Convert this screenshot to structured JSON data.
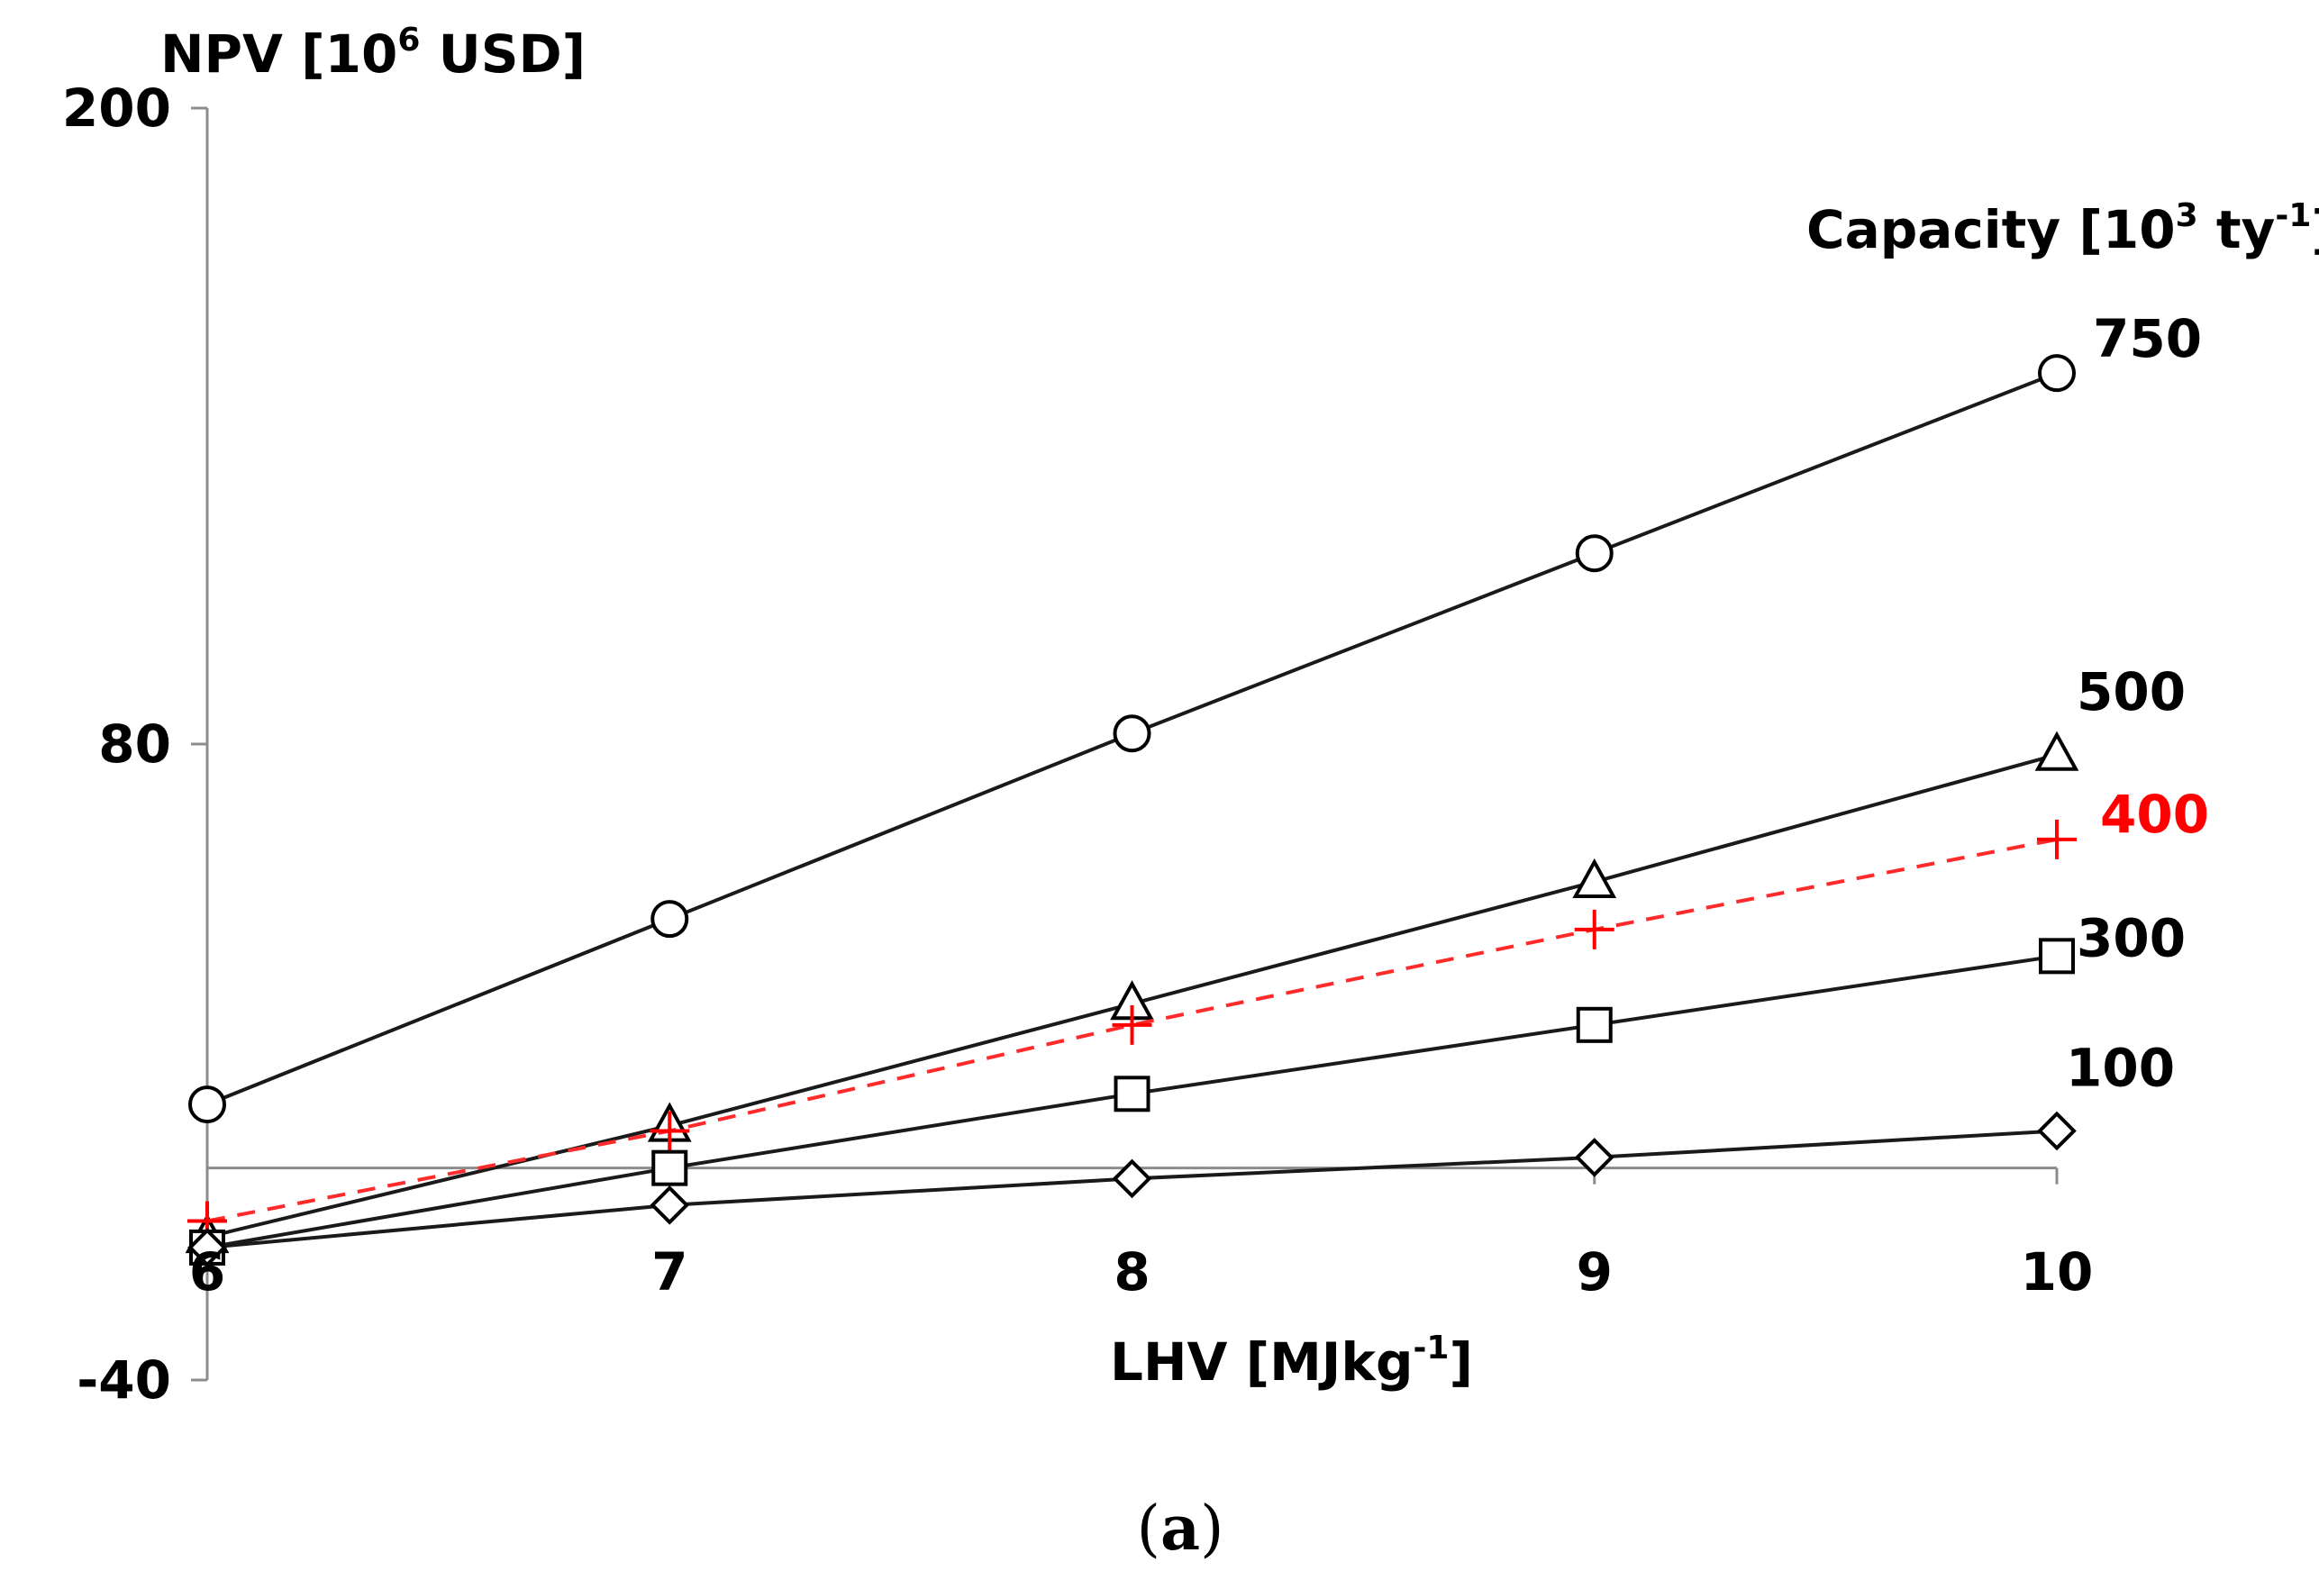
{
  "chart_data": {
    "type": "line",
    "ylabel_main": "NPV [10",
    "ylabel_sup": "6",
    "ylabel_end": " USD]",
    "xlabel_main": "LHV [MJkg",
    "xlabel_sup": "-1",
    "xlabel_end": "]",
    "legend_title_main": "Capacity [10",
    "legend_title_sup1": "3",
    "legend_title_mid": " ty",
    "legend_title_sup2": "-1",
    "legend_title_end": "]",
    "x": [
      6,
      7,
      8,
      9,
      10
    ],
    "xlim": [
      6,
      10
    ],
    "ylim": [
      -40,
      200
    ],
    "y_ticks": [
      "200",
      "80",
      "-40"
    ],
    "x_ticks": [
      "6",
      "7",
      "8",
      "9",
      "10"
    ],
    "series": [
      {
        "name": "750",
        "values": [
          12,
          47,
          82,
          116,
          150
        ],
        "marker": "circle",
        "color": "#000000",
        "line_color": "#1a1a1a",
        "dashed": false
      },
      {
        "name": "500",
        "values": [
          -13,
          8,
          31,
          54,
          78
        ],
        "marker": "triangle",
        "color": "#000000",
        "line_color": "#1a1a1a",
        "dashed": false
      },
      {
        "name": "400",
        "values": [
          -10,
          7,
          27,
          45,
          62
        ],
        "marker": "plus",
        "color": "#ff0000",
        "line_color": "#ff2a2a",
        "dashed": true
      },
      {
        "name": "300",
        "values": [
          -15,
          0,
          14,
          27,
          40
        ],
        "marker": "square",
        "color": "#000000",
        "line_color": "#1a1a1a",
        "dashed": false
      },
      {
        "name": "100",
        "values": [
          -15,
          -7,
          -2,
          2,
          7
        ],
        "marker": "diamond",
        "color": "#000000",
        "line_color": "#1a1a1a",
        "dashed": false
      }
    ]
  },
  "caption": {
    "open": "(",
    "letter": "a",
    "close": ")"
  }
}
